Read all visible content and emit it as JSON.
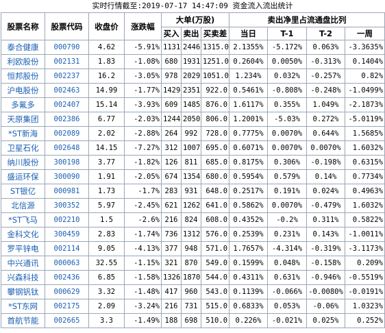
{
  "caption": "实时行情截至:2019-07-17 14:47:09 资金流入流出统计",
  "headers": {
    "name": "股票名称",
    "code": "股票代码",
    "close": "收盘价",
    "change": "涨跌幅",
    "big_group": "大单(万股)",
    "buy": "买入",
    "sell": "卖出",
    "net": "买卖差",
    "ratio_group": "卖出净里占流通盘比列",
    "today": "当日",
    "t1": "T-1",
    "t2": "T-2",
    "week": "一周"
  },
  "rows": [
    {
      "name": "泰合健康",
      "code": "000790",
      "close": "4.62",
      "change": "-5.91%",
      "buy": "1131",
      "sell": "2446",
      "net": "1315.0",
      "today": "2.1355%",
      "t1": "-5.172%",
      "t2": "0.063%",
      "week": "-3.3635%"
    },
    {
      "name": "利欧股份",
      "code": "002131",
      "close": "1.83",
      "change": "-1.08%",
      "buy": "680",
      "sell": "1931",
      "net": "1251.0",
      "today": "0.2604%",
      "t1": "0.0050%",
      "t2": "-0.313%",
      "week": "0.1404%"
    },
    {
      "name": "恒邦股份",
      "code": "002237",
      "close": "16.2",
      "change": "-3.05%",
      "buy": "978",
      "sell": "2029",
      "net": "1051.0",
      "today": "1.234%",
      "t1": "0.032%",
      "t2": "-0.257%",
      "week": "0.82%"
    },
    {
      "name": "沪电股份",
      "code": "002463",
      "close": "14.99",
      "change": "-1.77%",
      "buy": "1429",
      "sell": "2351",
      "net": "922.0",
      "today": "0.5461%",
      "t1": "-0.808%",
      "t2": "-0.248%",
      "week": "-1.0499%"
    },
    {
      "name": "多氟多",
      "code": "002407",
      "close": "15.14",
      "change": "-3.93%",
      "buy": "609",
      "sell": "1485",
      "net": "876.0",
      "today": "1.6117%",
      "t1": "0.355%",
      "t2": "1.049%",
      "week": "-2.1873%"
    },
    {
      "name": "天原集团",
      "code": "002386",
      "close": "6.77",
      "change": "-2.03%",
      "buy": "1244",
      "sell": "2050",
      "net": "806.0",
      "today": "1.2001%",
      "t1": "-5.03%",
      "t2": "0.272%",
      "week": "-5.0119%"
    },
    {
      "name": "*ST新海",
      "code": "002089",
      "close": "2.02",
      "change": "-2.88%",
      "buy": "264",
      "sell": "992",
      "net": "728.0",
      "today": "0.7775%",
      "t1": "0.0070%",
      "t2": "0.644%",
      "week": "1.5685%"
    },
    {
      "name": "卫星石化",
      "code": "002648",
      "close": "14.15",
      "change": "-7.27%",
      "buy": "312",
      "sell": "1007",
      "net": "695.0",
      "today": "0.6071%",
      "t1": "0.0070%",
      "t2": "0.0070%",
      "week": "1.6032%"
    },
    {
      "name": "纳川股份",
      "code": "300198",
      "close": "3.77",
      "change": "-1.82%",
      "buy": "126",
      "sell": "811",
      "net": "685.0",
      "today": "0.8175%",
      "t1": "0.306%",
      "t2": "-0.198%",
      "week": "0.6315%"
    },
    {
      "name": "盛运环保",
      "code": "300090",
      "close": "1.91",
      "change": "-2.05%",
      "buy": "674",
      "sell": "1354",
      "net": "680.0",
      "today": "0.5954%",
      "t1": "0.579%",
      "t2": "0.14%",
      "week": "0.7734%"
    },
    {
      "name": "ST银亿",
      "code": "000981",
      "close": "1.73",
      "change": "-1.7%",
      "buy": "283",
      "sell": "931",
      "net": "648.0",
      "today": "0.2517%",
      "t1": "0.191%",
      "t2": "0.024%",
      "week": "0.4963%"
    },
    {
      "name": "北信源",
      "code": "300352",
      "close": "5.97",
      "change": "-2.45%",
      "buy": "621",
      "sell": "1262",
      "net": "641.0",
      "today": "0.5862%",
      "t1": "0.0070%",
      "t2": "-0.479%",
      "week": "1.6032%"
    },
    {
      "name": "*ST飞马",
      "code": "002210",
      "close": "1.5",
      "change": "-2.6%",
      "buy": "216",
      "sell": "824",
      "net": "608.0",
      "today": "0.4352%",
      "t1": "-0.2%",
      "t2": "0.311%",
      "week": "0.5822%"
    },
    {
      "name": "金科文化",
      "code": "300459",
      "close": "2.83",
      "change": "-1.74%",
      "buy": "736",
      "sell": "1312",
      "net": "576.0",
      "today": "0.2539%",
      "t1": "0.231%",
      "t2": "0.143%",
      "week": "-1.0011%"
    },
    {
      "name": "罗平锌电",
      "code": "002114",
      "close": "9.05",
      "change": "-4.13%",
      "buy": "377",
      "sell": "948",
      "net": "571.0",
      "today": "1.7657%",
      "t1": "-4.314%",
      "t2": "-0.319%",
      "week": "-3.1173%"
    },
    {
      "name": "中兴通讯",
      "code": "000063",
      "close": "32.55",
      "change": "-1.15%",
      "buy": "321",
      "sell": "870",
      "net": "549.0",
      "today": "0.1599%",
      "t1": "0.048%",
      "t2": "-0.158%",
      "week": "0.209%"
    },
    {
      "name": "兴森科技",
      "code": "002436",
      "close": "6.85",
      "change": "-1.58%",
      "buy": "1326",
      "sell": "1870",
      "net": "544.0",
      "today": "0.4311%",
      "t1": "0.631%",
      "t2": "-0.946%",
      "week": "-0.5519%"
    },
    {
      "name": "攀钢钒钛",
      "code": "000629",
      "close": "3.32",
      "change": "-1.48%",
      "buy": "417",
      "sell": "960",
      "net": "543.0",
      "today": "0.1139%",
      "t1": "-0.066%",
      "t2": "-0.0080%",
      "week": "-0.0191%"
    },
    {
      "name": "*ST东网",
      "code": "002175",
      "close": "2.09",
      "change": "-3.24%",
      "buy": "216",
      "sell": "731",
      "net": "515.0",
      "today": "0.6833%",
      "t1": "0.053%",
      "t2": "-0.06%",
      "week": "1.0323%"
    },
    {
      "name": "首航节能",
      "code": "002665",
      "close": "3.3",
      "change": "-1.49%",
      "buy": "188",
      "sell": "698",
      "net": "510.0",
      "today": "0.226%",
      "t1": "-0.021%",
      "t2": "0.025%",
      "week": "0.252%"
    }
  ]
}
